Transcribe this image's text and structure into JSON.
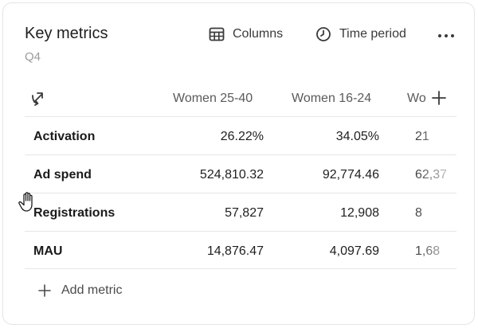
{
  "widget": {
    "title": "Key metrics",
    "subtitle": "Q4"
  },
  "toolbar": {
    "columns_label": "Columns",
    "time_period_label": "Time period",
    "more_label": "···"
  },
  "table": {
    "columns": [
      "Women 25-40",
      "Women 16-24",
      "Wo"
    ],
    "rows": [
      {
        "label": "Activation",
        "values": [
          "26.22%",
          "34.05%",
          "21"
        ]
      },
      {
        "label": "Ad spend",
        "values": [
          "524,810.32",
          "92,774.46",
          "62,37"
        ]
      },
      {
        "label": "Registrations",
        "values": [
          "57,827",
          "12,908",
          "8"
        ]
      },
      {
        "label": "MAU",
        "values": [
          "14,876.47",
          "4,097.69",
          "1,68"
        ]
      }
    ]
  },
  "footer": {
    "add_metric_label": "Add metric"
  },
  "icons": {
    "columns": "table-grid-icon",
    "time": "clock-icon",
    "swap": "swap-arrows-icon",
    "add_column": "plus-icon",
    "add_metric": "plus-icon",
    "cursor": "hand-pointer-icon"
  }
}
